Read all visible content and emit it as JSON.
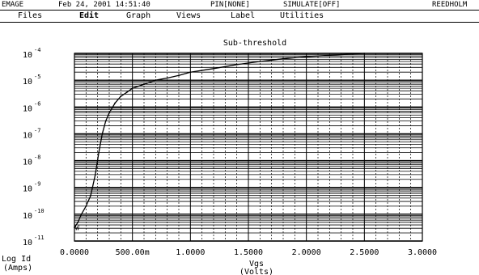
{
  "status": {
    "app": "EMAGE",
    "datetime": "Feb 24, 2001 14:51:40",
    "pin": "PIN[NONE]",
    "simulate": "SIMULATE[OFF]",
    "vendor": "REEDHOLM"
  },
  "menu": {
    "items": [
      "Files",
      "Edit",
      "Graph",
      "Views",
      "Label",
      "Utilities"
    ],
    "active": "Edit"
  },
  "chart_data": {
    "type": "line",
    "title": "Sub-threshold",
    "xlabel": "Vgs",
    "xunit": "(Volts)",
    "ylabel": "Log Id",
    "yunit": "(Amps)",
    "xlim": [
      0,
      3.0
    ],
    "ylim_log10": [
      -11,
      -4
    ],
    "log_y": true,
    "grid": true,
    "x_tick_labels": [
      "0.0000",
      "500.00m",
      "1.0000",
      "1.5000",
      "2.0000",
      "2.5000",
      "3.0000"
    ],
    "y_tick_exponents": [
      -4,
      -5,
      -6,
      -7,
      -8,
      -9,
      -10,
      -11
    ],
    "series": [
      {
        "x": [
          0.0,
          0.03,
          0.06,
          0.1,
          0.14,
          0.18,
          0.21,
          0.24,
          0.27,
          0.3,
          0.35,
          0.4,
          0.45,
          0.5,
          0.6,
          0.7,
          0.8,
          0.9,
          1.0,
          1.2,
          1.4,
          1.6,
          1.8,
          2.0,
          2.2,
          2.5
        ],
        "y": [
          3.2e-11,
          5e-11,
          1e-10,
          2e-10,
          5e-10,
          3e-09,
          2e-08,
          1e-07,
          3e-07,
          6e-07,
          1.4e-06,
          2.5e-06,
          3.5e-06,
          5e-06,
          7e-06,
          1e-05,
          1.2e-05,
          1.5e-05,
          2e-05,
          2.7e-05,
          3.8e-05,
          5e-05,
          6.3e-05,
          7.5e-05,
          8.5e-05,
          0.0001
        ]
      }
    ]
  }
}
